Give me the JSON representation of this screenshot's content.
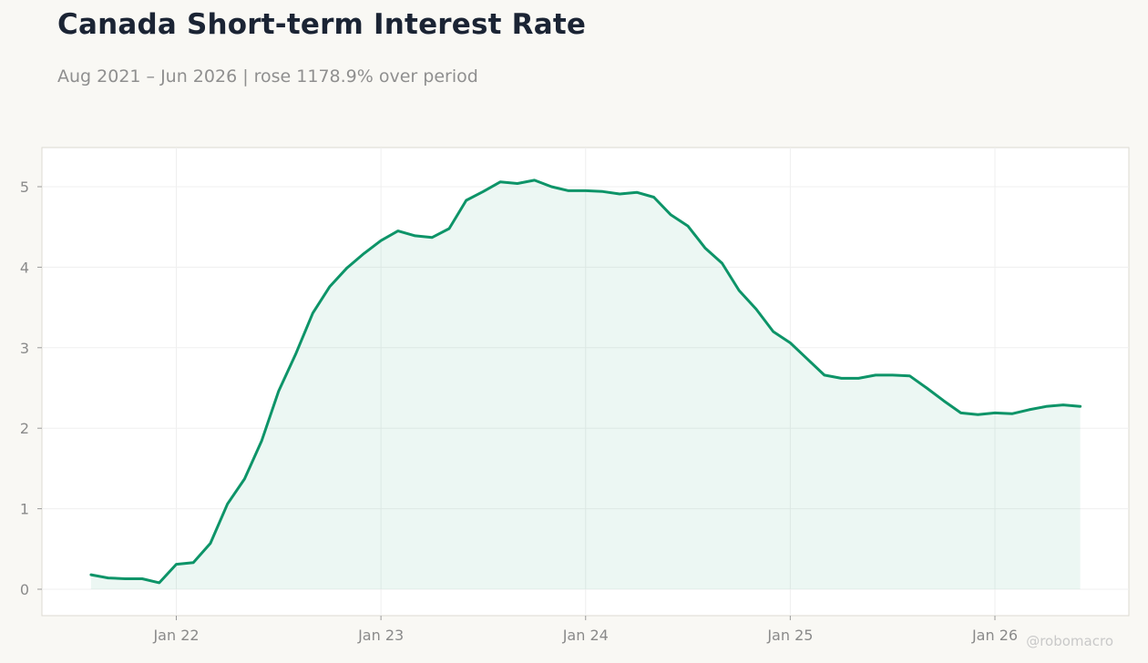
{
  "title": "Canada Short-term Interest Rate",
  "subtitle": "Aug 2021 – Jun 2026 | rose 1178.9% over period",
  "watermark": "@robomacro",
  "colors": {
    "line": "#0d9468",
    "fill": "#0d9468",
    "background": "#f9f8f4",
    "plot_background": "#ffffff"
  },
  "chart_data": {
    "type": "area",
    "title": "Canada Short-term Interest Rate",
    "xlabel": "",
    "ylabel": "",
    "ylim": [
      -0.3,
      5.5
    ],
    "yticks": [
      0,
      1,
      2,
      3,
      4,
      5
    ],
    "xticks": [
      {
        "date": "2022-01",
        "label": "Jan 22"
      },
      {
        "date": "2023-01",
        "label": "Jan 23"
      },
      {
        "date": "2024-01",
        "label": "Jan 24"
      },
      {
        "date": "2025-01",
        "label": "Jan 25"
      },
      {
        "date": "2026-01",
        "label": "Jan 26"
      }
    ],
    "grid": true,
    "legend": "none",
    "series": [
      {
        "x": [
          "2021-08",
          "2021-09",
          "2021-10",
          "2021-11",
          "2021-12",
          "2022-01",
          "2022-02",
          "2022-03",
          "2022-04",
          "2022-05",
          "2022-06",
          "2022-07",
          "2022-08",
          "2022-09",
          "2022-10",
          "2022-11",
          "2022-12",
          "2023-01",
          "2023-02",
          "2023-03",
          "2023-04",
          "2023-05",
          "2023-06",
          "2023-07",
          "2023-08",
          "2023-09",
          "2023-10",
          "2023-11",
          "2023-12",
          "2024-01",
          "2024-02",
          "2024-03",
          "2024-04",
          "2024-05",
          "2024-06",
          "2024-07",
          "2024-08",
          "2024-09",
          "2024-10",
          "2024-11",
          "2024-12",
          "2025-01",
          "2025-02",
          "2025-03",
          "2025-04",
          "2025-05",
          "2025-06",
          "2025-07",
          "2025-08",
          "2025-09",
          "2025-10",
          "2025-11",
          "2025-12",
          "2026-01",
          "2026-02",
          "2026-03",
          "2026-04",
          "2026-05",
          "2026-06"
        ],
        "values": [
          0.18,
          0.14,
          0.13,
          0.13,
          0.08,
          0.31,
          0.33,
          0.57,
          1.06,
          1.37,
          1.84,
          2.46,
          2.92,
          3.43,
          3.76,
          3.99,
          4.17,
          4.33,
          4.45,
          4.39,
          4.37,
          4.48,
          4.83,
          4.94,
          5.06,
          5.04,
          5.08,
          5.0,
          4.95,
          4.95,
          4.94,
          4.91,
          4.93,
          4.87,
          4.65,
          4.51,
          4.24,
          4.05,
          3.71,
          3.48,
          3.2,
          3.06,
          2.86,
          2.66,
          2.62,
          2.62,
          2.66,
          2.66,
          2.65,
          2.5,
          2.34,
          2.19,
          2.17,
          2.19,
          2.18,
          2.23,
          2.27,
          2.29,
          2.27
        ]
      }
    ]
  }
}
